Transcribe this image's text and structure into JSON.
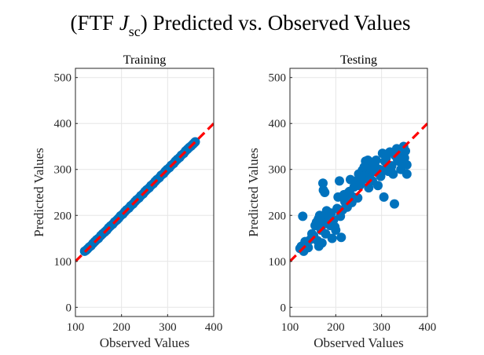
{
  "figure": {
    "title_pre": "(FTF ",
    "title_var": "J",
    "title_sub": "sc",
    "title_post": ") Predicted vs. Observed Values",
    "marker_color": "#0072BD",
    "line_color": "#FF0000"
  },
  "chart_data": [
    {
      "type": "scatter",
      "title": "Training",
      "xlabel": "Observed Values",
      "ylabel": "Predicted Values",
      "xlim": [
        100,
        400
      ],
      "ylim": [
        -20,
        520
      ],
      "xticks": [
        100,
        200,
        300,
        400
      ],
      "yticks": [
        0,
        100,
        200,
        300,
        400,
        500
      ],
      "grid": true,
      "reference_line": {
        "style": "dashed",
        "slope": 1,
        "intercept": 0
      },
      "points": [
        [
          120,
          122
        ],
        [
          123,
          124
        ],
        [
          126,
          127
        ],
        [
          130,
          131
        ],
        [
          134,
          134
        ],
        [
          138,
          139
        ],
        [
          142,
          143
        ],
        [
          146,
          147
        ],
        [
          150,
          150
        ],
        [
          155,
          156
        ],
        [
          159,
          160
        ],
        [
          164,
          164
        ],
        [
          168,
          168
        ],
        [
          172,
          173
        ],
        [
          176,
          177
        ],
        [
          181,
          181
        ],
        [
          185,
          186
        ],
        [
          190,
          190
        ],
        [
          194,
          194
        ],
        [
          198,
          199
        ],
        [
          203,
          203
        ],
        [
          207,
          208
        ],
        [
          211,
          212
        ],
        [
          216,
          216
        ],
        [
          220,
          221
        ],
        [
          225,
          225
        ],
        [
          229,
          230
        ],
        [
          233,
          234
        ],
        [
          238,
          238
        ],
        [
          242,
          243
        ],
        [
          247,
          247
        ],
        [
          251,
          252
        ],
        [
          255,
          256
        ],
        [
          260,
          260
        ],
        [
          264,
          265
        ],
        [
          269,
          269
        ],
        [
          273,
          274
        ],
        [
          277,
          278
        ],
        [
          282,
          282
        ],
        [
          286,
          287
        ],
        [
          291,
          291
        ],
        [
          295,
          296
        ],
        [
          299,
          300
        ],
        [
          304,
          304
        ],
        [
          308,
          309
        ],
        [
          313,
          313
        ],
        [
          317,
          318
        ],
        [
          321,
          322
        ],
        [
          326,
          326
        ],
        [
          330,
          331
        ],
        [
          335,
          335
        ],
        [
          339,
          340
        ],
        [
          343,
          344
        ],
        [
          347,
          348
        ],
        [
          351,
          351
        ],
        [
          355,
          355
        ],
        [
          358,
          358
        ],
        [
          360,
          360
        ]
      ]
    },
    {
      "type": "scatter",
      "title": "Testing",
      "xlabel": "Observed Values",
      "ylabel": "Predicted Values",
      "xlim": [
        100,
        400
      ],
      "ylim": [
        -20,
        520
      ],
      "xticks": [
        100,
        200,
        300,
        400
      ],
      "yticks": [
        0,
        100,
        200,
        300,
        400,
        500
      ],
      "grid": true,
      "reference_line": {
        "style": "dashed",
        "slope": 1,
        "intercept": 0
      },
      "points": [
        [
          122,
          128
        ],
        [
          125,
          133
        ],
        [
          128,
          198
        ],
        [
          130,
          122
        ],
        [
          133,
          143
        ],
        [
          137,
          138
        ],
        [
          140,
          130
        ],
        [
          145,
          148
        ],
        [
          148,
          160
        ],
        [
          152,
          155
        ],
        [
          155,
          178
        ],
        [
          158,
          185
        ],
        [
          160,
          145
        ],
        [
          162,
          192
        ],
        [
          163,
          133
        ],
        [
          165,
          200
        ],
        [
          167,
          172
        ],
        [
          168,
          168
        ],
        [
          170,
          140
        ],
        [
          170,
          195
        ],
        [
          172,
          270
        ],
        [
          173,
          255
        ],
        [
          175,
          182
        ],
        [
          176,
          250
        ],
        [
          178,
          160
        ],
        [
          180,
          210
        ],
        [
          182,
          185
        ],
        [
          185,
          193
        ],
        [
          188,
          178
        ],
        [
          190,
          205
        ],
        [
          192,
          150
        ],
        [
          195,
          190
        ],
        [
          198,
          175
        ],
        [
          200,
          168
        ],
        [
          203,
          215
        ],
        [
          205,
          240
        ],
        [
          208,
          275
        ],
        [
          210,
          198
        ],
        [
          212,
          152
        ],
        [
          215,
          212
        ],
        [
          218,
          245
        ],
        [
          220,
          230
        ],
        [
          222,
          235
        ],
        [
          225,
          218
        ],
        [
          228,
          250
        ],
        [
          230,
          252
        ],
        [
          232,
          278
        ],
        [
          235,
          228
        ],
        [
          238,
          240
        ],
        [
          240,
          262
        ],
        [
          242,
          270
        ],
        [
          245,
          275
        ],
        [
          248,
          238
        ],
        [
          250,
          290
        ],
        [
          252,
          265
        ],
        [
          255,
          270
        ],
        [
          258,
          298
        ],
        [
          260,
          285
        ],
        [
          262,
          305
        ],
        [
          265,
          318
        ],
        [
          267,
          280
        ],
        [
          268,
          310
        ],
        [
          270,
          320
        ],
        [
          272,
          260
        ],
        [
          275,
          290
        ],
        [
          278,
          300
        ],
        [
          280,
          275
        ],
        [
          282,
          315
        ],
        [
          285,
          310
        ],
        [
          288,
          320
        ],
        [
          290,
          298
        ],
        [
          292,
          265
        ],
        [
          295,
          300
        ],
        [
          298,
          285
        ],
        [
          300,
          295
        ],
        [
          302,
          335
        ],
        [
          305,
          240
        ],
        [
          307,
          318
        ],
        [
          310,
          325
        ],
        [
          312,
          310
        ],
        [
          315,
          296
        ],
        [
          318,
          338
        ],
        [
          320,
          300
        ],
        [
          322,
          308
        ],
        [
          325,
          290
        ],
        [
          328,
          225
        ],
        [
          330,
          330
        ],
        [
          333,
          345
        ],
        [
          335,
          320
        ],
        [
          338,
          318
        ],
        [
          340,
          330
        ],
        [
          342,
          300
        ],
        [
          345,
          312
        ],
        [
          348,
          350
        ],
        [
          350,
          325
        ],
        [
          352,
          340
        ],
        [
          355,
          310
        ],
        [
          355,
          290
        ]
      ]
    }
  ]
}
